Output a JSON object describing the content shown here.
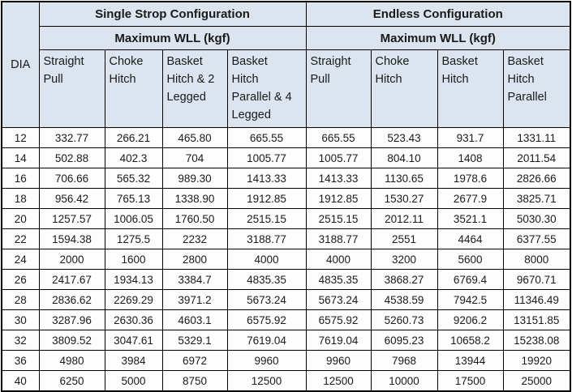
{
  "colors": {
    "header_bg": "#dce4ef",
    "border": "#000000",
    "cell_bg": "#fdfdfd",
    "text": "#1a1a1a"
  },
  "table": {
    "dia_label": "DIA",
    "groups": [
      {
        "id": "single-strop",
        "title": "Single Strop Configuration",
        "subtitle": "Maximum WLL (kgf)",
        "columns": [
          {
            "id": "straight-pull",
            "label": "Straight Pull",
            "lines": [
              "Straight",
              "Pull"
            ]
          },
          {
            "id": "choke-hitch",
            "label": "Choke Hitch",
            "lines": [
              "Choke",
              "Hitch"
            ]
          },
          {
            "id": "basket-hitch-2-legged",
            "label": "Basket Hitch & 2 Legged",
            "lines": [
              "Basket",
              "Hitch & 2",
              "Legged"
            ]
          },
          {
            "id": "basket-hitch-parallel-4-legged",
            "label": "Basket Hitch Parallel & 4 Legged",
            "lines": [
              "Basket",
              "Hitch",
              "Parallel & 4",
              "Legged"
            ]
          }
        ]
      },
      {
        "id": "endless",
        "title": "Endless Configuration",
        "subtitle": "Maximum WLL (kgf)",
        "columns": [
          {
            "id": "straight-pull",
            "label": "Straight Pull",
            "lines": [
              "Straight",
              "Pull"
            ]
          },
          {
            "id": "choke-hitch",
            "label": "Choke Hitch",
            "lines": [
              "Choke",
              "Hitch"
            ]
          },
          {
            "id": "basket-hitch",
            "label": "Basket Hitch",
            "lines": [
              "Basket",
              "Hitch"
            ]
          },
          {
            "id": "basket-hitch-parallel",
            "label": "Basket Hitch Parallel",
            "lines": [
              "Basket",
              "Hitch",
              "Parallel"
            ]
          }
        ]
      }
    ],
    "rows": [
      {
        "dia": "12",
        "values": [
          "332.77",
          "266.21",
          "465.80",
          "665.55",
          "665.55",
          "523.43",
          "931.7",
          "1331.11"
        ]
      },
      {
        "dia": "14",
        "values": [
          "502.88",
          "402.3",
          "704",
          "1005.77",
          "1005.77",
          "804.10",
          "1408",
          "2011.54"
        ]
      },
      {
        "dia": "16",
        "values": [
          "706.66",
          "565.32",
          "989.30",
          "1413.33",
          "1413.33",
          "1130.65",
          "1978.6",
          "2826.66"
        ]
      },
      {
        "dia": "18",
        "values": [
          "956.42",
          "765.13",
          "1338.90",
          "1912.85",
          "1912.85",
          "1530.27",
          "2677.9",
          "3825.71"
        ]
      },
      {
        "dia": "20",
        "values": [
          "1257.57",
          "1006.05",
          "1760.50",
          "2515.15",
          "2515.15",
          "2012.11",
          "3521.1",
          "5030.30"
        ]
      },
      {
        "dia": "22",
        "values": [
          "1594.38",
          "1275.5",
          "2232",
          "3188.77",
          "3188.77",
          "2551",
          "4464",
          "6377.55"
        ]
      },
      {
        "dia": "24",
        "values": [
          "2000",
          "1600",
          "2800",
          "4000",
          "4000",
          "3200",
          "5600",
          "8000"
        ]
      },
      {
        "dia": "26",
        "values": [
          "2417.67",
          "1934.13",
          "3384.7",
          "4835.35",
          "4835.35",
          "3868.27",
          "6769.4",
          "9670.71"
        ]
      },
      {
        "dia": "28",
        "values": [
          "2836.62",
          "2269.29",
          "3971.2",
          "5673.24",
          "5673.24",
          "4538.59",
          "7942.5",
          "11346.49"
        ]
      },
      {
        "dia": "30",
        "values": [
          "3287.96",
          "2630.36",
          "4603.1",
          "6575.92",
          "6575.92",
          "5260.73",
          "9206.2",
          "13151.85"
        ]
      },
      {
        "dia": "32",
        "values": [
          "3809.52",
          "3047.61",
          "5329.1",
          "7619.04",
          "7619.04",
          "6095.23",
          "10658.2",
          "15238.08"
        ]
      },
      {
        "dia": "36",
        "values": [
          "4980",
          "3984",
          "6972",
          "9960",
          "9960",
          "7968",
          "13944",
          "19920"
        ]
      },
      {
        "dia": "40",
        "values": [
          "6250",
          "5000",
          "8750",
          "12500",
          "12500",
          "10000",
          "17500",
          "25000"
        ]
      }
    ]
  }
}
